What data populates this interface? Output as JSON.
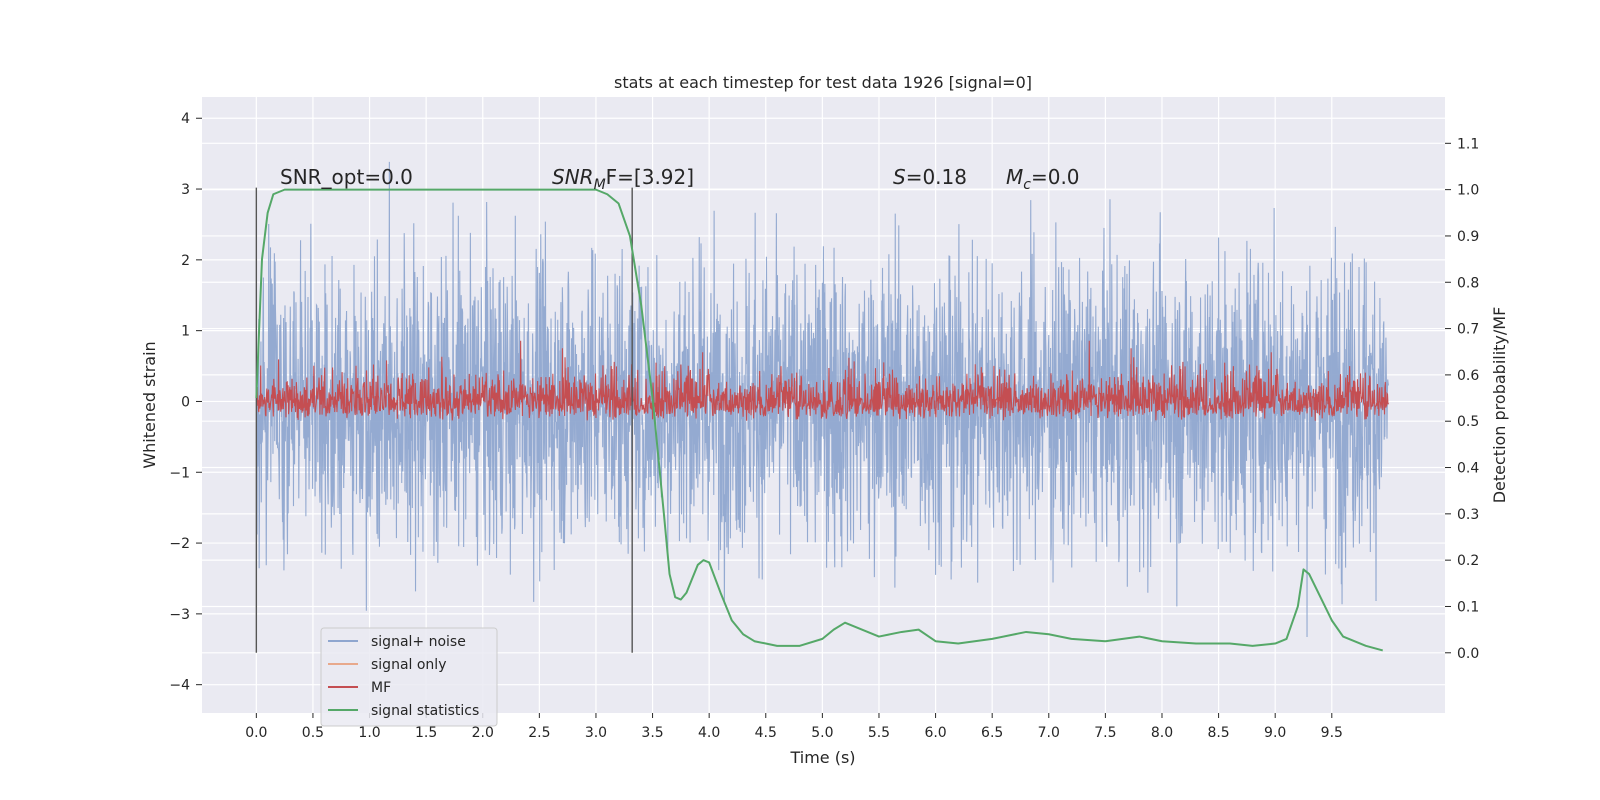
{
  "chart_data": {
    "type": "line",
    "title": "stats at each timestep for test data 1926 [signal=0]",
    "xlabel": "Time (s)",
    "ylabel_left": "Whitened strain",
    "ylabel_right": "Detection probability/MF",
    "xlim": [
      -0.48,
      10.5
    ],
    "ylim_left": [
      -4.4,
      4.3
    ],
    "ylim_right": [
      -0.13,
      1.2
    ],
    "x_ticks": [
      0.0,
      0.5,
      1.0,
      1.5,
      2.0,
      2.5,
      3.0,
      3.5,
      4.0,
      4.5,
      5.0,
      5.5,
      6.0,
      6.5,
      7.0,
      7.5,
      8.0,
      8.5,
      9.0,
      9.5
    ],
    "x_tick_labels": [
      "0.0",
      "0.5",
      "1.0",
      "1.5",
      "2.0",
      "2.5",
      "3.0",
      "3.5",
      "4.0",
      "4.5",
      "5.0",
      "5.5",
      "6.0",
      "6.5",
      "7.0",
      "7.5",
      "8.0",
      "8.5",
      "9.0",
      "9.5"
    ],
    "y_left_ticks": [
      -4,
      -3,
      -2,
      -1,
      0,
      1,
      2,
      3,
      4
    ],
    "y_left_tick_labels": [
      "−4",
      "−3",
      "−2",
      "−1",
      "0",
      "1",
      "2",
      "3",
      "4"
    ],
    "y_right_ticks": [
      0.0,
      0.1,
      0.2,
      0.3,
      0.4,
      0.5,
      0.6,
      0.7,
      0.8,
      0.9,
      1.0,
      1.1
    ],
    "y_right_tick_labels": [
      "0.0",
      "0.1",
      "0.2",
      "0.3",
      "0.4",
      "0.5",
      "0.6",
      "0.7",
      "0.8",
      "0.9",
      "1.0",
      "1.1"
    ],
    "grid": true,
    "legend_position": "lower-left",
    "annotations": {
      "snr_opt": "SNR_opt=0.0",
      "snr_mf_base": "SNR",
      "snr_mf_sub": "M",
      "snr_mf_rest": "F=[3.92]",
      "s_italic": "S",
      "s_rest": "=0.18",
      "mc_base": "M",
      "mc_sub": "c",
      "mc_rest": "=0.0"
    },
    "vlines": [
      0.0,
      3.32
    ],
    "series": [
      {
        "name": "signal+ noise",
        "color": "#8fa6cf",
        "axis": "left",
        "style": "noise",
        "x_range": [
          0.0,
          10.0
        ],
        "amplitude_envelope": 3.9,
        "note_min": -4.0,
        "note_max": 3.9
      },
      {
        "name": "signal only",
        "color": "#e8a98c",
        "axis": "left",
        "values": []
      },
      {
        "name": "MF",
        "color": "#c44e52",
        "axis": "right",
        "style": "noise",
        "x_range": [
          0.0,
          10.0
        ],
        "baseline": 0.5,
        "band": [
          0.5,
          0.65
        ]
      },
      {
        "name": "signal statistics",
        "color": "#55a868",
        "axis": "right",
        "x": [
          0.0,
          0.05,
          0.1,
          0.15,
          0.25,
          0.5,
          1.0,
          1.5,
          2.0,
          2.5,
          3.0,
          3.1,
          3.2,
          3.3,
          3.4,
          3.5,
          3.6,
          3.65,
          3.7,
          3.75,
          3.8,
          3.85,
          3.9,
          3.95,
          4.0,
          4.1,
          4.2,
          4.3,
          4.4,
          4.5,
          4.6,
          4.8,
          5.0,
          5.1,
          5.2,
          5.3,
          5.5,
          5.7,
          5.85,
          6.0,
          6.2,
          6.5,
          6.8,
          7.0,
          7.2,
          7.5,
          7.8,
          8.0,
          8.3,
          8.6,
          8.8,
          9.0,
          9.1,
          9.2,
          9.25,
          9.3,
          9.4,
          9.5,
          9.6,
          9.8,
          9.95
        ],
        "values": [
          0.55,
          0.85,
          0.95,
          0.99,
          1.0,
          1.0,
          1.0,
          1.0,
          1.0,
          1.0,
          1.0,
          0.99,
          0.97,
          0.9,
          0.75,
          0.55,
          0.3,
          0.17,
          0.12,
          0.115,
          0.13,
          0.16,
          0.19,
          0.2,
          0.195,
          0.13,
          0.07,
          0.04,
          0.025,
          0.02,
          0.015,
          0.015,
          0.03,
          0.05,
          0.065,
          0.055,
          0.035,
          0.045,
          0.05,
          0.025,
          0.02,
          0.03,
          0.045,
          0.04,
          0.03,
          0.025,
          0.035,
          0.025,
          0.02,
          0.02,
          0.015,
          0.02,
          0.03,
          0.1,
          0.18,
          0.17,
          0.12,
          0.07,
          0.035,
          0.015,
          0.005
        ]
      }
    ]
  }
}
